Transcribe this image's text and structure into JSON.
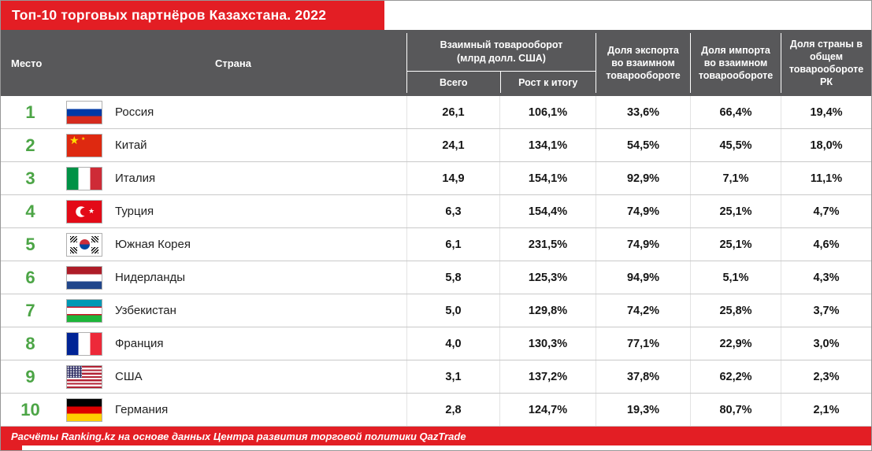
{
  "colors": {
    "red": "#e31e24",
    "header_gray": "#58585a",
    "rank_green": "#4ca546",
    "row_line": "#c9c9c9"
  },
  "chart_data": {
    "type": "table",
    "title": "Топ-10 торговых партнёров Казахстана. 2022",
    "source_note": "Расчёты Ranking.kz на основе данных Центра развития торговой политики QazTrade",
    "column_headers": {
      "place": "Место",
      "country": "Страна",
      "turnover_group_line1": "Взаимный товарооборот",
      "turnover_group_line2": "(млрд долл. США)",
      "turnover_total": "Всего",
      "turnover_growth": "Рост к итогу",
      "export_share": "Доля экспорта во взаимном товарообороте",
      "import_share": "Доля импорта во взаимном товарообороте",
      "country_share": "Доля страны в общем товарообороте РК"
    },
    "rows": [
      {
        "rank": "1",
        "flag": "ru",
        "country": "Россия",
        "total": "26,1",
        "growth": "106,1%",
        "export_share": "33,6%",
        "import_share": "66,4%",
        "share": "19,4%"
      },
      {
        "rank": "2",
        "flag": "cn",
        "country": "Китай",
        "total": "24,1",
        "growth": "134,1%",
        "export_share": "54,5%",
        "import_share": "45,5%",
        "share": "18,0%"
      },
      {
        "rank": "3",
        "flag": "it",
        "country": "Италия",
        "total": "14,9",
        "growth": "154,1%",
        "export_share": "92,9%",
        "import_share": "7,1%",
        "share": "11,1%"
      },
      {
        "rank": "4",
        "flag": "tr",
        "country": "Турция",
        "total": "6,3",
        "growth": "154,4%",
        "export_share": "74,9%",
        "import_share": "25,1%",
        "share": "4,7%"
      },
      {
        "rank": "5",
        "flag": "kr",
        "country": "Южная Корея",
        "total": "6,1",
        "growth": "231,5%",
        "export_share": "74,9%",
        "import_share": "25,1%",
        "share": "4,6%"
      },
      {
        "rank": "6",
        "flag": "nl",
        "country": "Нидерланды",
        "total": "5,8",
        "growth": "125,3%",
        "export_share": "94,9%",
        "import_share": "5,1%",
        "share": "4,3%"
      },
      {
        "rank": "7",
        "flag": "uz",
        "country": "Узбекистан",
        "total": "5,0",
        "growth": "129,8%",
        "export_share": "74,2%",
        "import_share": "25,8%",
        "share": "3,7%"
      },
      {
        "rank": "8",
        "flag": "fr",
        "country": "Франция",
        "total": "4,0",
        "growth": "130,3%",
        "export_share": "77,1%",
        "import_share": "22,9%",
        "share": "3,0%"
      },
      {
        "rank": "9",
        "flag": "us",
        "country": "США",
        "total": "3,1",
        "growth": "137,2%",
        "export_share": "37,8%",
        "import_share": "62,2%",
        "share": "2,3%"
      },
      {
        "rank": "10",
        "flag": "de",
        "country": "Германия",
        "total": "2,8",
        "growth": "124,7%",
        "export_share": "19,3%",
        "import_share": "80,7%",
        "share": "2,1%"
      }
    ]
  }
}
